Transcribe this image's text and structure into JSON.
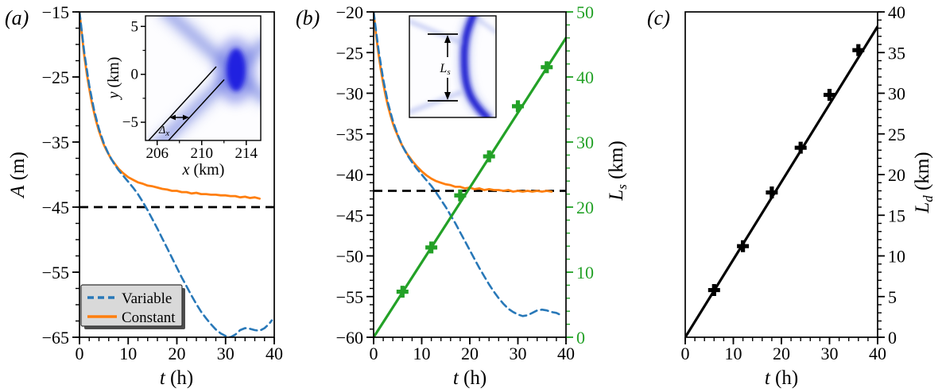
{
  "figure": {
    "panel_labels": {
      "a": "(a)",
      "b": "(b)",
      "c": "(c)"
    },
    "colors": {
      "blue": "#2878b8",
      "orange": "#ff7f0e",
      "green": "#23a127",
      "black": "#000000",
      "legend_bg": "#d9d9d9",
      "legend_shadow": "#4d4d4d"
    }
  },
  "xlabel": {
    "var": "t",
    "unit": " (h)"
  },
  "legend": {
    "items": [
      {
        "label": "Variable",
        "color": "#2878b8",
        "style": "dashed"
      },
      {
        "label": "Constant",
        "color": "#ff7f0e",
        "style": "solid"
      }
    ]
  },
  "insets": {
    "a": {
      "xlabel": {
        "var": "x",
        "unit": " (km)"
      },
      "ylabel": {
        "var": "y",
        "unit": " (km)"
      },
      "xticks": [
        206,
        210,
        214
      ],
      "xtick_labels": [
        "206",
        "210",
        "214"
      ],
      "x_minor_ticks": [
        208,
        212
      ],
      "yticks": [
        5,
        0,
        -5
      ],
      "ytick_labels": [
        "5",
        "0",
        "−5"
      ],
      "y_minor_ticks": [
        2.5,
        -2.5
      ],
      "xlim": [
        204.95,
        215.3
      ],
      "ylim": [
        -6.9,
        6.1
      ],
      "annotation": {
        "var": "Δ",
        "sub": "x"
      }
    },
    "b": {
      "annotation": {
        "var": "L",
        "sub": "s"
      }
    }
  },
  "chart_data": [
    {
      "panel": "a",
      "type": "line",
      "xlim": [
        0,
        40
      ],
      "xticks": [
        0,
        10,
        20,
        30,
        40
      ],
      "xtick_labels": [
        "0",
        "10",
        "20",
        "30",
        "40"
      ],
      "x_minor_step": 2,
      "left_axis": {
        "lim": [
          -65,
          -15
        ],
        "ticks": [
          -15,
          -25,
          -35,
          -45,
          -55,
          -65
        ],
        "tick_labels": [
          "−15",
          "−25",
          "−35",
          "−45",
          "−55",
          "−65"
        ],
        "minor_step": 2.5,
        "color": "black"
      },
      "ylabel": {
        "var": "A",
        "unit": " (m)"
      },
      "hline": -45,
      "series": [
        {
          "name": "constant",
          "legend": "Constant",
          "color": "orange",
          "dashed": false,
          "axis": "left",
          "width": 2.8,
          "points": [
            [
              0,
              -15
            ],
            [
              0.5,
              -18.6
            ],
            [
              1,
              -21.8
            ],
            [
              1.5,
              -24.5
            ],
            [
              2,
              -26.8
            ],
            [
              2.5,
              -28.8
            ],
            [
              3,
              -30.5
            ],
            [
              3.5,
              -32
            ],
            [
              4,
              -33.3
            ],
            [
              4.5,
              -34.4
            ],
            [
              5,
              -35.4
            ],
            [
              5.5,
              -36.2
            ],
            [
              6,
              -36.9
            ],
            [
              6.5,
              -37.6
            ],
            [
              7,
              -38.1
            ],
            [
              7.5,
              -38.6
            ],
            [
              8,
              -39.1
            ],
            [
              9,
              -39.8
            ],
            [
              10,
              -40.4
            ],
            [
              11,
              -40.8
            ],
            [
              12,
              -41.2
            ],
            [
              13,
              -41.4
            ],
            [
              14,
              -41.7
            ],
            [
              15,
              -41.8
            ],
            [
              16,
              -42
            ],
            [
              17,
              -42.2
            ],
            [
              18,
              -42.3
            ],
            [
              19,
              -42.5
            ],
            [
              20,
              -42.5
            ],
            [
              21,
              -42.7
            ],
            [
              22,
              -42.7
            ],
            [
              23,
              -42.9
            ],
            [
              24,
              -42.8
            ],
            [
              25,
              -43
            ],
            [
              26,
              -43
            ],
            [
              27,
              -43.1
            ],
            [
              28,
              -43.1
            ],
            [
              29,
              -43.2
            ],
            [
              30,
              -43.2
            ],
            [
              31,
              -43.3
            ],
            [
              32,
              -43.3
            ],
            [
              33,
              -43.5
            ],
            [
              34,
              -43.4
            ],
            [
              35,
              -43.6
            ],
            [
              36,
              -43.5
            ],
            [
              37,
              -43.7
            ]
          ]
        },
        {
          "name": "variable",
          "legend": "Variable",
          "color": "blue",
          "dashed": true,
          "axis": "left",
          "width": 2.6,
          "points": [
            [
              0,
              -15
            ],
            [
              1,
              -21.3
            ],
            [
              2,
              -26.3
            ],
            [
              3,
              -30.1
            ],
            [
              4,
              -33
            ],
            [
              5,
              -35.2
            ],
            [
              6,
              -36.9
            ],
            [
              7,
              -38.2
            ],
            [
              8,
              -39.3
            ],
            [
              9,
              -40.2
            ],
            [
              10,
              -41.1
            ],
            [
              11,
              -42
            ],
            [
              12,
              -43
            ],
            [
              13,
              -44.2
            ],
            [
              14,
              -45.5
            ],
            [
              15,
              -46.9
            ],
            [
              16,
              -48.3
            ],
            [
              17,
              -49.8
            ],
            [
              18,
              -51.3
            ],
            [
              19,
              -52.8
            ],
            [
              20,
              -54.3
            ],
            [
              21,
              -55.8
            ],
            [
              22,
              -57.2
            ],
            [
              23,
              -58.6
            ],
            [
              24,
              -59.9
            ],
            [
              25,
              -61.1
            ],
            [
              26,
              -62.1
            ],
            [
              27,
              -63
            ],
            [
              28,
              -63.8
            ],
            [
              29,
              -64.4
            ],
            [
              30,
              -64.8
            ],
            [
              31,
              -65
            ],
            [
              32,
              -64.6
            ],
            [
              33,
              -63.9
            ],
            [
              34,
              -63.6
            ],
            [
              35,
              -63.7
            ],
            [
              36,
              -63.9
            ],
            [
              37,
              -64
            ],
            [
              38,
              -63.6
            ],
            [
              39,
              -62.9
            ],
            [
              39.5,
              -62.4
            ]
          ]
        }
      ],
      "markers": []
    },
    {
      "panel": "b",
      "type": "line",
      "xlim": [
        0,
        40
      ],
      "xticks": [
        0,
        10,
        20,
        30,
        40
      ],
      "xtick_labels": [
        "0",
        "10",
        "20",
        "30",
        "40"
      ],
      "x_minor_step": 2,
      "left_axis": {
        "lim": [
          -60,
          -20
        ],
        "ticks": [
          -20,
          -25,
          -30,
          -35,
          -40,
          -45,
          -50,
          -55,
          -60
        ],
        "tick_labels": [
          "−20",
          "−25",
          "−30",
          "−35",
          "−40",
          "−45",
          "−50",
          "−55",
          "−60"
        ],
        "minor_step": 1,
        "color": "black"
      },
      "right_axis": {
        "lim": [
          0,
          50
        ],
        "ticks": [
          0,
          10,
          20,
          30,
          40,
          50
        ],
        "tick_labels": [
          "0",
          "10",
          "20",
          "30",
          "40",
          "50"
        ],
        "minor_step": 2,
        "color": "green"
      },
      "ylabel_right": {
        "var": "L",
        "sub": "s",
        "unit": " (km)"
      },
      "hline": -42,
      "series": [
        {
          "name": "constant",
          "color": "orange",
          "dashed": false,
          "axis": "left",
          "width": 2.8,
          "points": [
            [
              0,
              -20
            ],
            [
              0.5,
              -22.8
            ],
            [
              1,
              -25.1
            ],
            [
              1.5,
              -27.1
            ],
            [
              2,
              -28.8
            ],
            [
              2.5,
              -30.3
            ],
            [
              3,
              -31.6
            ],
            [
              3.5,
              -32.7
            ],
            [
              4,
              -33.7
            ],
            [
              4.5,
              -34.5
            ],
            [
              5,
              -35.2
            ],
            [
              5.5,
              -35.9
            ],
            [
              6,
              -36.5
            ],
            [
              6.5,
              -37
            ],
            [
              7,
              -37.5
            ],
            [
              7.5,
              -37.9
            ],
            [
              8,
              -38.3
            ],
            [
              9,
              -39
            ],
            [
              10,
              -39.6
            ],
            [
              11,
              -40.1
            ],
            [
              12,
              -40.5
            ],
            [
              13,
              -40.8
            ],
            [
              14,
              -41
            ],
            [
              15,
              -41.2
            ],
            [
              16,
              -41.3
            ],
            [
              17,
              -41.5
            ],
            [
              18,
              -41.5
            ],
            [
              19,
              -41.7
            ],
            [
              20,
              -41.6
            ],
            [
              21,
              -41.8
            ],
            [
              22,
              -41.7
            ],
            [
              23,
              -41.9
            ],
            [
              24,
              -41.8
            ],
            [
              25,
              -41.9
            ],
            [
              26,
              -41.9
            ],
            [
              27,
              -42
            ],
            [
              28,
              -41.9
            ],
            [
              29,
              -42.1
            ],
            [
              30,
              -42
            ],
            [
              31,
              -42.1
            ],
            [
              32,
              -42
            ],
            [
              33,
              -42.1
            ],
            [
              34,
              -42
            ],
            [
              35,
              -42.1
            ],
            [
              36,
              -42
            ],
            [
              37,
              -42.1
            ]
          ]
        },
        {
          "name": "variable",
          "color": "blue",
          "dashed": true,
          "axis": "left",
          "width": 2.6,
          "points": [
            [
              0,
              -20
            ],
            [
              1,
              -24.6
            ],
            [
              2,
              -28.3
            ],
            [
              3,
              -31.2
            ],
            [
              4,
              -33.4
            ],
            [
              5,
              -35.1
            ],
            [
              6,
              -36.5
            ],
            [
              7,
              -37.6
            ],
            [
              8,
              -38.5
            ],
            [
              9,
              -39.3
            ],
            [
              10,
              -40
            ],
            [
              11,
              -40.7
            ],
            [
              12,
              -41.4
            ],
            [
              13,
              -42.2
            ],
            [
              14,
              -43.1
            ],
            [
              15,
              -44
            ],
            [
              16,
              -45
            ],
            [
              17,
              -46
            ],
            [
              18,
              -47.1
            ],
            [
              19,
              -48.2
            ],
            [
              20,
              -49.3
            ],
            [
              21,
              -50.4
            ],
            [
              22,
              -51.5
            ],
            [
              23,
              -52.5
            ],
            [
              24,
              -53.5
            ],
            [
              25,
              -54.4
            ],
            [
              26,
              -55.2
            ],
            [
              27,
              -55.9
            ],
            [
              28,
              -56.5
            ],
            [
              29,
              -56.9
            ],
            [
              30,
              -57.2
            ],
            [
              31,
              -57.4
            ],
            [
              32,
              -57.3
            ],
            [
              33,
              -57
            ],
            [
              34,
              -56.7
            ],
            [
              35,
              -56.6
            ],
            [
              36,
              -56.7
            ],
            [
              37,
              -56.9
            ],
            [
              38,
              -57
            ],
            [
              39,
              -57.3
            ]
          ]
        },
        {
          "name": "ls-fit",
          "color": "green",
          "dashed": false,
          "axis": "right",
          "width": 3.2,
          "points": [
            [
              0,
              0
            ],
            [
              40,
              46
            ]
          ]
        }
      ],
      "markers": [
        {
          "name": "ls-points",
          "color": "green",
          "axis": "right",
          "points": [
            [
              6,
              7
            ],
            [
              12,
              13.8
            ],
            [
              18,
              21.8
            ],
            [
              24,
              27.8
            ],
            [
              30,
              35.5
            ],
            [
              36,
              41.5
            ]
          ]
        }
      ]
    },
    {
      "panel": "c",
      "type": "scatter",
      "xlim": [
        0,
        40
      ],
      "xticks": [
        0,
        10,
        20,
        30,
        40
      ],
      "xtick_labels": [
        "0",
        "10",
        "20",
        "30",
        "40"
      ],
      "x_minor_step": 2,
      "right_axis": {
        "lim": [
          0,
          40
        ],
        "ticks": [
          0,
          5,
          10,
          15,
          20,
          25,
          30,
          35,
          40
        ],
        "tick_labels": [
          "0",
          "5",
          "10",
          "15",
          "20",
          "25",
          "30",
          "35",
          "40"
        ],
        "minor_step": 1,
        "color": "black"
      },
      "ylabel_right": {
        "var": "L",
        "sub": "d",
        "unit": " (km)"
      },
      "series": [
        {
          "name": "ld-fit",
          "color": "black",
          "dashed": false,
          "axis": "right",
          "width": 3.2,
          "points": [
            [
              0,
              0
            ],
            [
              40,
              38.2
            ]
          ]
        }
      ],
      "markers": [
        {
          "name": "ld-points",
          "color": "black",
          "axis": "right",
          "points": [
            [
              6,
              5.8
            ],
            [
              12,
              11.2
            ],
            [
              18,
              17.8
            ],
            [
              24,
              23.3
            ],
            [
              30,
              29.8
            ],
            [
              36,
              35.3
            ]
          ]
        }
      ]
    }
  ]
}
